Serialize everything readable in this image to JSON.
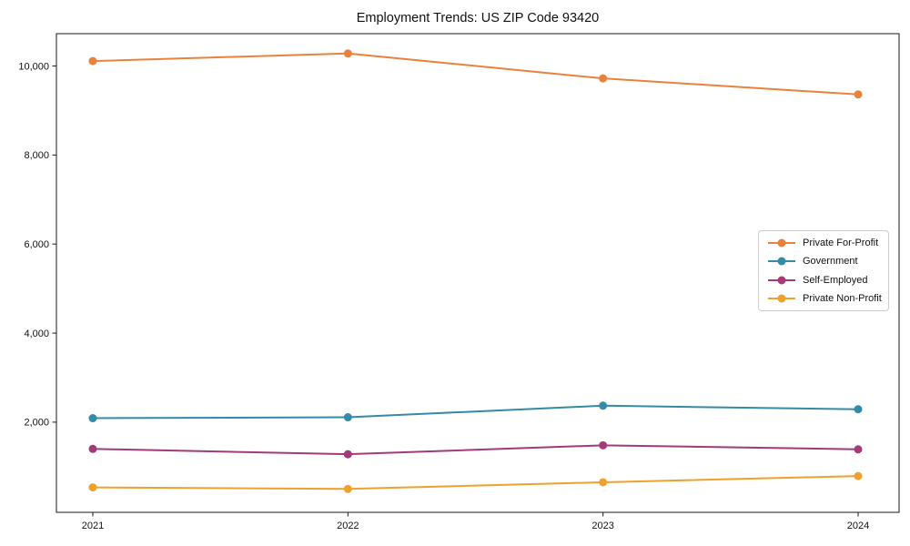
{
  "chart_data": {
    "type": "line",
    "title": "Employment Trends: US ZIP Code 93420",
    "x": [
      "2021",
      "2022",
      "2023",
      "2024"
    ],
    "series": [
      {
        "name": "Private For-Profit",
        "color": "#E8823E",
        "values": [
          10110,
          10280,
          9720,
          9360
        ]
      },
      {
        "name": "Government",
        "color": "#338BA8",
        "values": [
          2090,
          2110,
          2370,
          2290
        ]
      },
      {
        "name": "Self-Employed",
        "color": "#A43A78",
        "values": [
          1400,
          1280,
          1480,
          1390
        ]
      },
      {
        "name": "Private Non-Profit",
        "color": "#F0A12B",
        "values": [
          535,
          500,
          650,
          790
        ]
      }
    ],
    "xlabel": "",
    "ylabel": "",
    "ylim": [
      -25,
      10725
    ],
    "yticks": [
      2000,
      4000,
      6000,
      8000,
      10000
    ],
    "ytick_labels": [
      "2,000",
      "4,000",
      "6,000",
      "8,000",
      "10,000"
    ],
    "xtick_labels": [
      "2021",
      "2022",
      "2023",
      "2024"
    ],
    "grid": false,
    "legend_position": "center right",
    "marker": "circle",
    "axis_color": "#1a1a1a",
    "tick_label_color": "#111111"
  }
}
